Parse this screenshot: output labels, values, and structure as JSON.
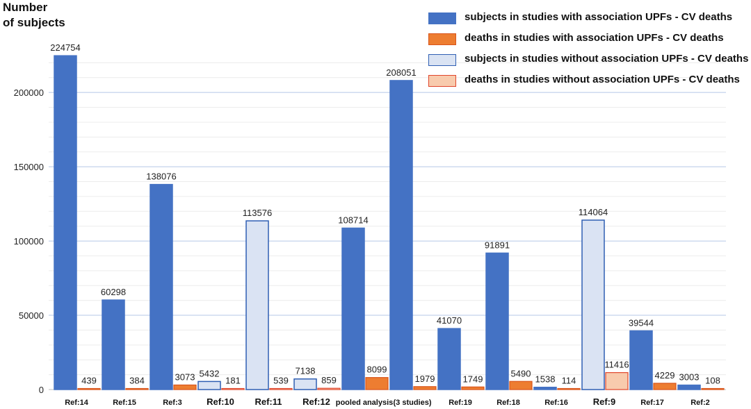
{
  "chart_data": {
    "type": "bar",
    "ylabel": "Number\nof subjects",
    "ylim": [
      0,
      230000
    ],
    "yticks": [
      0,
      50000,
      100000,
      150000,
      200000
    ],
    "grid": true,
    "legend_position": "top-right",
    "series_styles": {
      "subj_with": {
        "fill": "#4472c4",
        "stroke": "#4472c4"
      },
      "death_with": {
        "fill": "#ed7d31",
        "stroke": "#d9541a"
      },
      "subj_without": {
        "fill": "#dae3f3",
        "stroke": "#2f5fb3"
      },
      "death_without": {
        "fill": "#f8cbad",
        "stroke": "#e0452b"
      }
    },
    "legend": [
      {
        "label": "subjects in studies with association UPFs - CV deaths",
        "style": "subj_with"
      },
      {
        "label": "deaths in studies with association UPFs - CV deaths",
        "style": "death_with"
      },
      {
        "label": "subjects in studies without association UPFs - CV deaths",
        "style": "subj_without"
      },
      {
        "label": "deaths in studies without association UPFs - CV deaths",
        "style": "death_without"
      }
    ],
    "groups": [
      {
        "category": "Ref:14",
        "subjects": 224754,
        "deaths": 439,
        "association": true
      },
      {
        "category": "Ref:15",
        "subjects": 60298,
        "deaths": 384,
        "association": true
      },
      {
        "category": "Ref:3",
        "subjects": 138076,
        "deaths": 3073,
        "association": true
      },
      {
        "category": "Ref:10",
        "subjects": 5432,
        "deaths": 181,
        "association": false
      },
      {
        "category": "Ref:11",
        "subjects": 113576,
        "deaths": 539,
        "association": false
      },
      {
        "category": "Ref:12",
        "subjects": 7138,
        "deaths": 859,
        "association": false
      },
      {
        "category": "pooled analysis",
        "subjects": 108714,
        "deaths": 8099,
        "association": true
      },
      {
        "category": "(3 studies)",
        "subjects": 208051,
        "deaths": 1979,
        "association": true
      },
      {
        "category": "Ref:19",
        "subjects": 41070,
        "deaths": 1749,
        "association": true
      },
      {
        "category": "Ref:18",
        "subjects": 91891,
        "deaths": 5490,
        "association": true
      },
      {
        "category": "Ref:16",
        "subjects": 1538,
        "deaths": 114,
        "association": true
      },
      {
        "category": "Ref:9",
        "subjects": 114064,
        "deaths": 11416,
        "association": false
      },
      {
        "category": "Ref:17",
        "subjects": 39544,
        "deaths": 4229,
        "association": true
      },
      {
        "category": "Ref:2",
        "subjects": 3003,
        "deaths": 108,
        "association": true
      }
    ]
  }
}
